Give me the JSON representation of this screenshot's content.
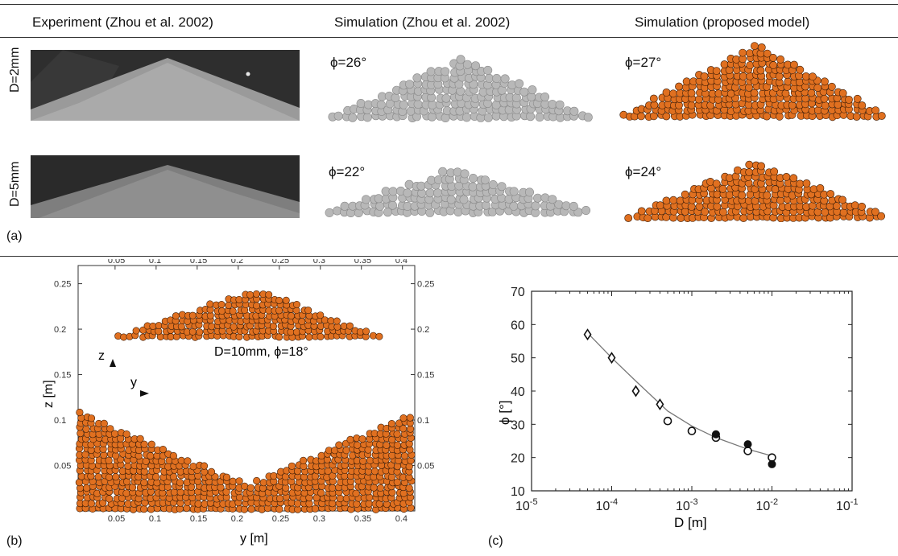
{
  "figure_a": {
    "col_headers": [
      "Experiment (Zhou et al. 2002)",
      "Simulation (Zhou et al. 2002)",
      "Simulation (proposed model)"
    ],
    "row_labels": [
      "D=2mm",
      "D=5mm"
    ],
    "angles_zhou": [
      "ϕ=26°",
      "ϕ=22°"
    ],
    "angles_proposed": [
      "ϕ=27°",
      "ϕ=24°"
    ],
    "tag": "(a)"
  },
  "figure_b": {
    "tag": "(b)",
    "xlabel": "y [m]",
    "ylabel": "z [m]",
    "annotation": "D=10mm, ϕ=18°",
    "axis_z": "z",
    "axis_y": "y",
    "x_ticks": [
      "0.05",
      "0.1",
      "0.15",
      "0.2",
      "0.25",
      "0.3",
      "0.35",
      "0.4"
    ],
    "y_ticks": [
      "0.05",
      "0.1",
      "0.15",
      "0.2",
      "0.25"
    ]
  },
  "figure_c": {
    "tag": "(c)"
  },
  "colors": {
    "orange_grain": "#e07020",
    "grey_grain": "#b8b8b8"
  },
  "chart_data": {
    "type": "scatter",
    "title": "",
    "xlabel": "D [m]",
    "ylabel": "ϕ [°]",
    "xscale": "log",
    "xlim": [
      1e-05,
      0.1
    ],
    "ylim": [
      10,
      70
    ],
    "x_ticks": [
      "10-5",
      "10-4",
      "10-3",
      "10-2",
      "10-1"
    ],
    "y_ticks": [
      "10",
      "20",
      "30",
      "40",
      "50",
      "60",
      "70"
    ],
    "grid": false,
    "series": [
      {
        "marker": "diamond-open",
        "x": [
          5e-05,
          0.0001,
          0.0002,
          0.0004
        ],
        "y": [
          57,
          50,
          40,
          36
        ]
      },
      {
        "marker": "circle-open",
        "x": [
          0.0005,
          0.001,
          0.002,
          0.005,
          0.01
        ],
        "y": [
          31,
          28,
          26,
          22,
          20
        ]
      },
      {
        "marker": "circle-filled",
        "x": [
          0.002,
          0.005,
          0.01
        ],
        "y": [
          27,
          24,
          18
        ]
      },
      {
        "marker": "fit-line",
        "x": [
          5e-05,
          0.0001,
          0.0002,
          0.0005,
          0.001,
          0.002,
          0.005,
          0.01
        ],
        "y": [
          57.5,
          50,
          43,
          34,
          29.5,
          26,
          22.5,
          20.5
        ]
      }
    ]
  }
}
